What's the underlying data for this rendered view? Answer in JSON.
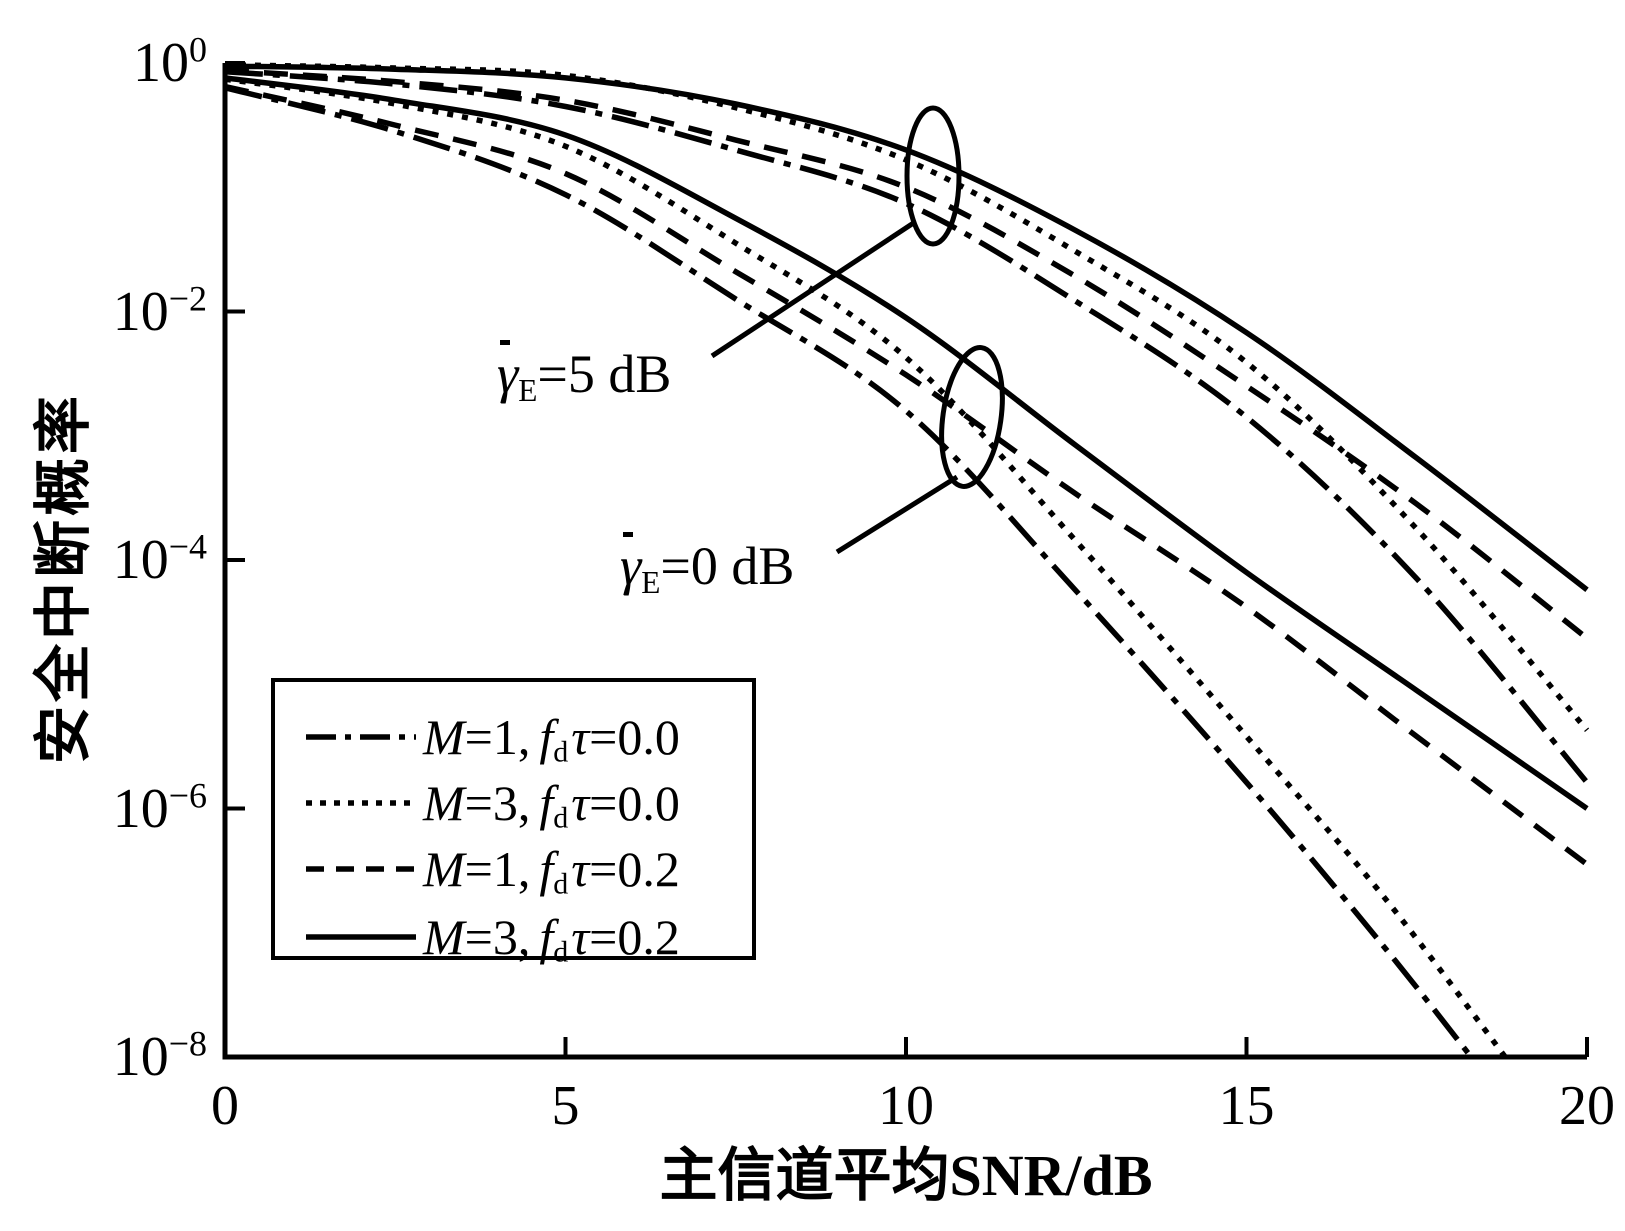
{
  "figure": {
    "background": "#ffffff",
    "foreground": "#000000"
  },
  "chart_data": {
    "type": "line",
    "title": "",
    "xlabel": "主信道平均SNR/dB",
    "ylabel": "安全中断概率",
    "xscale": "linear",
    "yscale": "log",
    "xlim": [
      0,
      20
    ],
    "ylim_exponents": [
      -8,
      0
    ],
    "grid": false,
    "xticks": [
      "0",
      "5",
      "10",
      "15",
      "20"
    ],
    "xtick_values": [
      0,
      5,
      10,
      15,
      20
    ],
    "ytick_base": "10",
    "ytick_exponents": [
      "0",
      "−2",
      "−4",
      "−6",
      "−8"
    ],
    "ytick_exponent_values": [
      0,
      -2,
      -4,
      -6,
      -8
    ],
    "legend_position": "lower left",
    "series": [
      {
        "label": "M=1, fdτ=0.0",
        "group": "γ̄E=5 dB",
        "style": "dashdot",
        "points": [
          [
            0,
            -0.07
          ],
          [
            2.5,
            -0.17
          ],
          [
            5,
            -0.35
          ],
          [
            7.5,
            -0.7
          ],
          [
            10,
            -1.13
          ],
          [
            12.5,
            -1.92
          ],
          [
            15,
            -2.85
          ],
          [
            17.5,
            -4.15
          ],
          [
            20,
            -5.79
          ]
        ]
      },
      {
        "label": "M=3, fdτ=0.0",
        "group": "γ̄E=5 dB",
        "style": "dotted",
        "points": [
          [
            0,
            -0.015
          ],
          [
            2.5,
            -0.04
          ],
          [
            5,
            -0.1
          ],
          [
            7.5,
            -0.36
          ],
          [
            10,
            -0.78
          ],
          [
            12.5,
            -1.52
          ],
          [
            15,
            -2.41
          ],
          [
            17.5,
            -3.75
          ],
          [
            20,
            -5.37
          ]
        ]
      },
      {
        "label": "M=1, fdτ=0.2",
        "group": "γ̄E=5 dB",
        "style": "dashed",
        "points": [
          [
            0,
            -0.06
          ],
          [
            2.5,
            -0.15
          ],
          [
            5,
            -0.3
          ],
          [
            7.5,
            -0.62
          ],
          [
            10,
            -1.0
          ],
          [
            12.5,
            -1.72
          ],
          [
            15,
            -2.6
          ],
          [
            17.5,
            -3.55
          ],
          [
            20,
            -4.63
          ]
        ]
      },
      {
        "label": "M=3, fdτ=0.2",
        "group": "γ̄E=5 dB",
        "style": "solid",
        "points": [
          [
            0,
            -0.025
          ],
          [
            2.5,
            -0.05
          ],
          [
            5,
            -0.12
          ],
          [
            7.5,
            -0.33
          ],
          [
            10,
            -0.7
          ],
          [
            12.5,
            -1.35
          ],
          [
            15,
            -2.17
          ],
          [
            17.5,
            -3.18
          ],
          [
            20,
            -4.24
          ]
        ]
      },
      {
        "label": "M=1, fdτ=0.0",
        "group": "γ̄E=0 dB",
        "style": "dashdot",
        "points": [
          [
            0,
            -0.2
          ],
          [
            2.5,
            -0.55
          ],
          [
            5,
            -1.06
          ],
          [
            7.5,
            -1.9
          ],
          [
            10,
            -2.8
          ],
          [
            12.5,
            -4.25
          ],
          [
            15,
            -5.79
          ],
          [
            17,
            -7.1
          ],
          [
            18.3,
            -8.0
          ]
        ]
      },
      {
        "label": "M=3, fdτ=0.0",
        "group": "γ̄E=0 dB",
        "style": "dotted",
        "points": [
          [
            0,
            -0.13
          ],
          [
            2.5,
            -0.33
          ],
          [
            5,
            -0.67
          ],
          [
            7.5,
            -1.45
          ],
          [
            10,
            -2.37
          ],
          [
            12.5,
            -3.85
          ],
          [
            15,
            -5.42
          ],
          [
            17,
            -6.7
          ],
          [
            18.8,
            -8.0
          ]
        ]
      },
      {
        "label": "M=1, fdτ=0.2",
        "group": "γ̄E=0 dB",
        "style": "dashed",
        "points": [
          [
            0,
            -0.19
          ],
          [
            2.5,
            -0.5
          ],
          [
            5,
            -0.89
          ],
          [
            7.5,
            -1.68
          ],
          [
            10,
            -2.51
          ],
          [
            12.5,
            -3.47
          ],
          [
            15,
            -4.38
          ],
          [
            17.5,
            -5.42
          ],
          [
            20,
            -6.45
          ]
        ]
      },
      {
        "label": "M=3, fdτ=0.2",
        "group": "γ̄E=0 dB",
        "style": "solid",
        "points": [
          [
            0,
            -0.12
          ],
          [
            2.5,
            -0.3
          ],
          [
            5,
            -0.58
          ],
          [
            7.5,
            -1.25
          ],
          [
            10,
            -2.05
          ],
          [
            12.5,
            -3.08
          ],
          [
            15,
            -4.1
          ],
          [
            17.5,
            -5.05
          ],
          [
            20,
            -6.0
          ]
        ]
      }
    ]
  },
  "annotations": [
    {
      "text": "γ̄E=5 dB",
      "gamma": "γ",
      "sub": "E",
      "eq": "=5 dB"
    },
    {
      "text": "γ̄E=0 dB",
      "gamma": "γ",
      "sub": "E",
      "eq": "=0 dB"
    }
  ],
  "legend": {
    "items": [
      {
        "style": "dashdot",
        "m": "M",
        "m_eq": "=1,",
        "f": "f",
        "f_sub": "d",
        "tau": "τ",
        "tau_eq": "=0.0",
        "label": "M=1, fdτ=0.0"
      },
      {
        "style": "dotted",
        "m": "M",
        "m_eq": "=3,",
        "f": "f",
        "f_sub": "d",
        "tau": "τ",
        "tau_eq": "=0.0",
        "label": "M=3, fdτ=0.0"
      },
      {
        "style": "dashed",
        "m": "M",
        "m_eq": "=1,",
        "f": "f",
        "f_sub": "d",
        "tau": "τ",
        "tau_eq": "=0.2",
        "label": "M=1, fdτ=0.2"
      },
      {
        "style": "solid",
        "m": "M",
        "m_eq": "=3,",
        "f": "f",
        "f_sub": "d",
        "tau": "τ",
        "tau_eq": "=0.2",
        "label": "M=3, fdτ=0.2"
      }
    ]
  }
}
